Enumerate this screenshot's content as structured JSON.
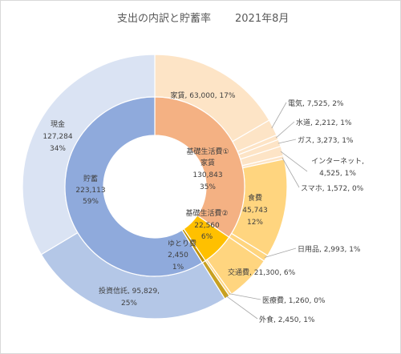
{
  "chart_data": {
    "type": "pie",
    "subtype": "nested-donut",
    "title": "支出の内訳と貯蓄率",
    "subtitle": "2021年8月",
    "inner_ring": [
      {
        "name": "基礎生活費①",
        "sublabel": "家賃",
        "value": 130843,
        "value_text": "130,843",
        "percent": "35%",
        "color": "#f4b183"
      },
      {
        "name": "基礎生活費②",
        "value": 22560,
        "value_text": "22,560",
        "percent": "6%",
        "color": "#ffc000"
      },
      {
        "name": "ゆとり費",
        "value": 2450,
        "value_text": "2,450",
        "percent": "1%",
        "color": "#c09000"
      },
      {
        "name": "貯蓄",
        "value": 223113,
        "value_text": "223,113",
        "percent": "59%",
        "color": "#8faadc"
      }
    ],
    "outer_ring": [
      {
        "name": "家賃",
        "label": "家賃, 63,000, 17%",
        "value": 63000,
        "color": "#fde4c6"
      },
      {
        "name": "電気",
        "label": "電気, 7,525, 2%",
        "value": 7525,
        "color": "#fde4c6"
      },
      {
        "name": "水道",
        "label": "水道, 2,212, 1%",
        "value": 2212,
        "color": "#fde4c6"
      },
      {
        "name": "ガス",
        "label": "ガス, 3,273, 1%",
        "value": 3273,
        "color": "#fde4c6"
      },
      {
        "name": "インターネット",
        "label": "インターネット,",
        "label2": "4,525, 1%",
        "value": 4525,
        "color": "#fde4c6"
      },
      {
        "name": "スマホ",
        "label": "スマホ, 1,572, 0%",
        "value": 1572,
        "color": "#fde4c6"
      },
      {
        "name": "食費",
        "label": "食費",
        "label2": "45,743",
        "label3": "12%",
        "value": 45743,
        "color": "#ffd57f"
      },
      {
        "name": "日用品",
        "label": "日用品, 2,993, 1%",
        "value": 2993,
        "color": "#ffd57f"
      },
      {
        "name": "交通費",
        "label": "交通費, 21,300, 6%",
        "value": 21300,
        "color": "#ffd57f"
      },
      {
        "name": "医療費",
        "label": "医療費, 1,260, 0%",
        "value": 1260,
        "color": "#ffd57f"
      },
      {
        "name": "外食",
        "label": "外食, 2,450, 1%",
        "value": 2450,
        "color": "#c8a020"
      },
      {
        "name": "投資信託",
        "label": "投資信託, 95,829,",
        "label2": "25%",
        "value": 95829,
        "color": "#b4c7e7"
      },
      {
        "name": "現金",
        "label": "現金",
        "label2": "127,284",
        "label3": "34%",
        "value": 127284,
        "color": "#dae3f3"
      }
    ]
  }
}
